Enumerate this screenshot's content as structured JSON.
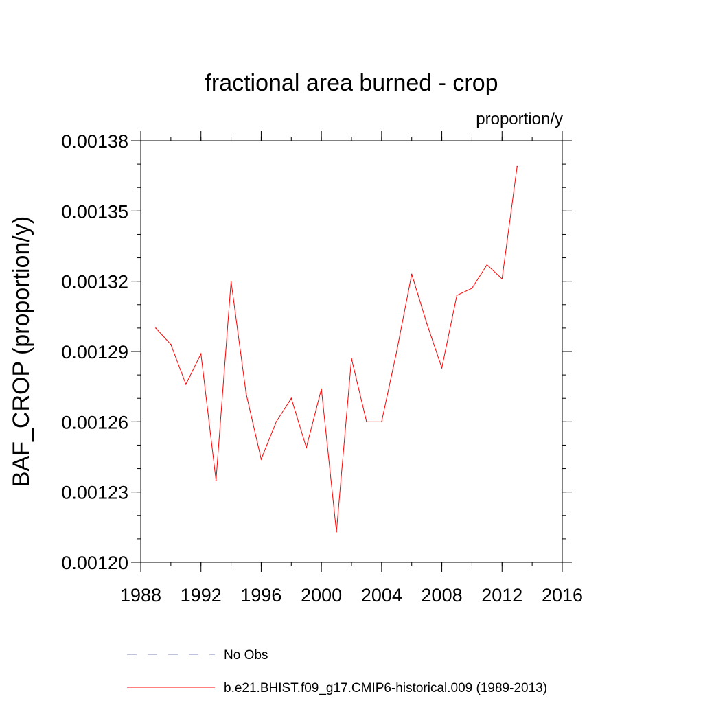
{
  "chart_data": {
    "type": "line",
    "title": "fractional area burned - crop",
    "units_label": "proportion/y",
    "ylabel": "BAF_CROP  (proportion/y)",
    "xlabel": "",
    "xlim": [
      1988,
      2016
    ],
    "ylim": [
      0.0012,
      0.00138
    ],
    "x_ticks": [
      1988,
      1992,
      1996,
      2000,
      2004,
      2008,
      2012,
      2016
    ],
    "x_tick_labels": [
      "1988",
      "1992",
      "1996",
      "2000",
      "2004",
      "2008",
      "2012",
      "2016"
    ],
    "y_ticks": [
      0.0012,
      0.00123,
      0.00126,
      0.00129,
      0.00132,
      0.00135,
      0.00138
    ],
    "y_tick_labels": [
      "0.00120",
      "0.00123",
      "0.00126",
      "0.00129",
      "0.00132",
      "0.00135",
      "0.00138"
    ],
    "y_minor_step": 1e-05,
    "x_minor_step": 2,
    "grid": false,
    "legend_position": "bottom",
    "series": [
      {
        "name": "b.e21.BHIST.f09_g17.CMIP6-historical.009 (1989-2013)",
        "color": "#ff0000",
        "dash": "solid",
        "x": [
          1989,
          1990,
          1991,
          1992,
          1993,
          1994,
          1995,
          1996,
          1997,
          1998,
          1999,
          2000,
          2001,
          2002,
          2003,
          2004,
          2005,
          2006,
          2007,
          2008,
          2009,
          2010,
          2011,
          2012,
          2013
        ],
        "values": [
          0.0013,
          0.001293,
          0.001276,
          0.001289,
          0.001235,
          0.00132,
          0.001272,
          0.001244,
          0.00126,
          0.00127,
          0.001249,
          0.001274,
          0.001213,
          0.001287,
          0.00126,
          0.00126,
          0.00129,
          0.001323,
          0.001302,
          0.001283,
          0.001314,
          0.001317,
          0.001327,
          0.001321,
          0.001369
        ]
      }
    ],
    "legend": [
      {
        "label": "No Obs",
        "color": "#8080c0",
        "dash": "dashed"
      },
      {
        "label": "b.e21.BHIST.f09_g17.CMIP6-historical.009 (1989-2013)",
        "color": "#ff0000",
        "dash": "solid"
      }
    ]
  }
}
